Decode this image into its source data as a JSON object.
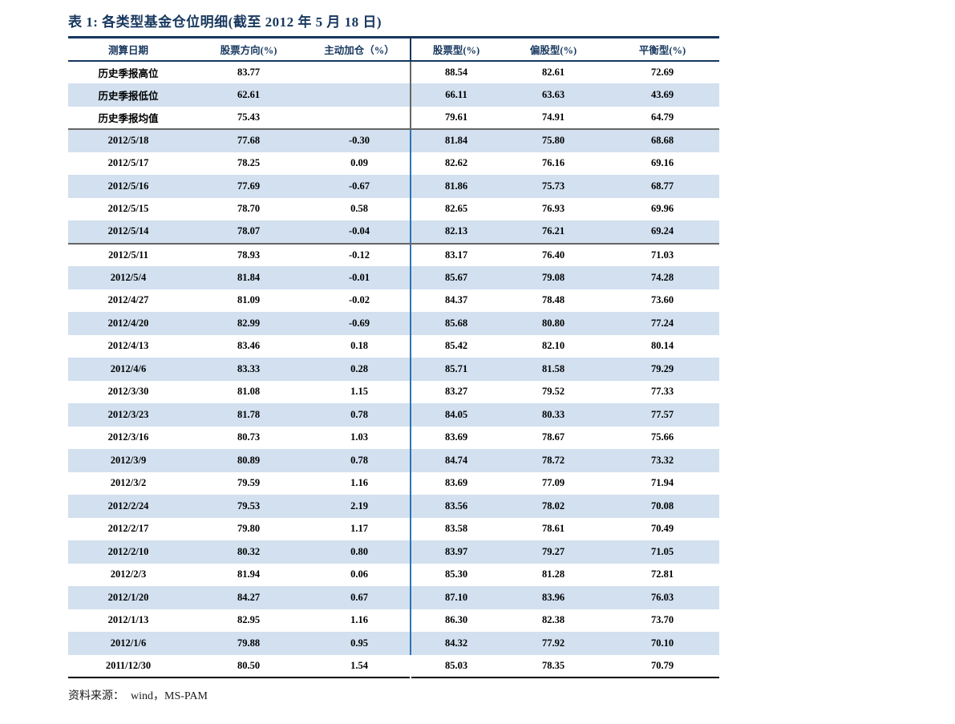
{
  "title": "表 1:  各类型基金仓位明细(截至 2012 年 5 月 18 日)",
  "footer": {
    "label": "资料来源：",
    "value": "wind，MS-PAM"
  },
  "colors": {
    "navy": "#17375E",
    "line_blue": "#2E75B6",
    "row_shade": "#D2E0EF",
    "divider_gray": "#666666"
  },
  "table": {
    "columns": [
      "测算日期",
      "股票方向(%)",
      "主动加仓（%）",
      "股票型(%)",
      "偏股型(%)",
      "平衡型(%)"
    ],
    "summary_rows": [
      [
        "历史季报高位",
        "83.77",
        "",
        "88.54",
        "82.61",
        "72.69"
      ],
      [
        "历史季报低位",
        "62.61",
        "",
        "66.11",
        "63.63",
        "43.69"
      ],
      [
        "历史季报均值",
        "75.43",
        "",
        "79.61",
        "74.91",
        "64.79"
      ]
    ],
    "daily_rows": [
      [
        "2012/5/18",
        "77.68",
        "-0.30",
        "81.84",
        "75.80",
        "68.68"
      ],
      [
        "2012/5/17",
        "78.25",
        "0.09",
        "82.62",
        "76.16",
        "69.16"
      ],
      [
        "2012/5/16",
        "77.69",
        "-0.67",
        "81.86",
        "75.73",
        "68.77"
      ],
      [
        "2012/5/15",
        "78.70",
        "0.58",
        "82.65",
        "76.93",
        "69.96"
      ],
      [
        "2012/5/14",
        "78.07",
        "-0.04",
        "82.13",
        "76.21",
        "69.24"
      ]
    ],
    "weekly_rows": [
      [
        "2012/5/11",
        "78.93",
        "-0.12",
        "83.17",
        "76.40",
        "71.03"
      ],
      [
        "2012/5/4",
        "81.84",
        "-0.01",
        "85.67",
        "79.08",
        "74.28"
      ],
      [
        "2012/4/27",
        "81.09",
        "-0.02",
        "84.37",
        "78.48",
        "73.60"
      ],
      [
        "2012/4/20",
        "82.99",
        "-0.69",
        "85.68",
        "80.80",
        "77.24"
      ],
      [
        "2012/4/13",
        "83.46",
        "0.18",
        "85.42",
        "82.10",
        "80.14"
      ],
      [
        "2012/4/6",
        "83.33",
        "0.28",
        "85.71",
        "81.58",
        "79.29"
      ],
      [
        "2012/3/30",
        "81.08",
        "1.15",
        "83.27",
        "79.52",
        "77.33"
      ],
      [
        "2012/3/23",
        "81.78",
        "0.78",
        "84.05",
        "80.33",
        "77.57"
      ],
      [
        "2012/3/16",
        "80.73",
        "1.03",
        "83.69",
        "78.67",
        "75.66"
      ],
      [
        "2012/3/9",
        "80.89",
        "0.78",
        "84.74",
        "78.72",
        "73.32"
      ],
      [
        "2012/3/2",
        "79.59",
        "1.16",
        "83.69",
        "77.09",
        "71.94"
      ],
      [
        "2012/2/24",
        "79.53",
        "2.19",
        "83.56",
        "78.02",
        "70.08"
      ],
      [
        "2012/2/17",
        "79.80",
        "1.17",
        "83.58",
        "78.61",
        "70.49"
      ],
      [
        "2012/2/10",
        "80.32",
        "0.80",
        "83.97",
        "79.27",
        "71.05"
      ],
      [
        "2012/2/3",
        "81.94",
        "0.06",
        "85.30",
        "81.28",
        "72.81"
      ],
      [
        "2012/1/20",
        "84.27",
        "0.67",
        "87.10",
        "83.96",
        "76.03"
      ],
      [
        "2012/1/13",
        "82.95",
        "1.16",
        "86.30",
        "82.38",
        "73.70"
      ],
      [
        "2012/1/6",
        "79.88",
        "0.95",
        "84.32",
        "77.92",
        "70.10"
      ],
      [
        "2011/12/30",
        "80.50",
        "1.54",
        "85.03",
        "78.35",
        "70.79"
      ]
    ]
  }
}
